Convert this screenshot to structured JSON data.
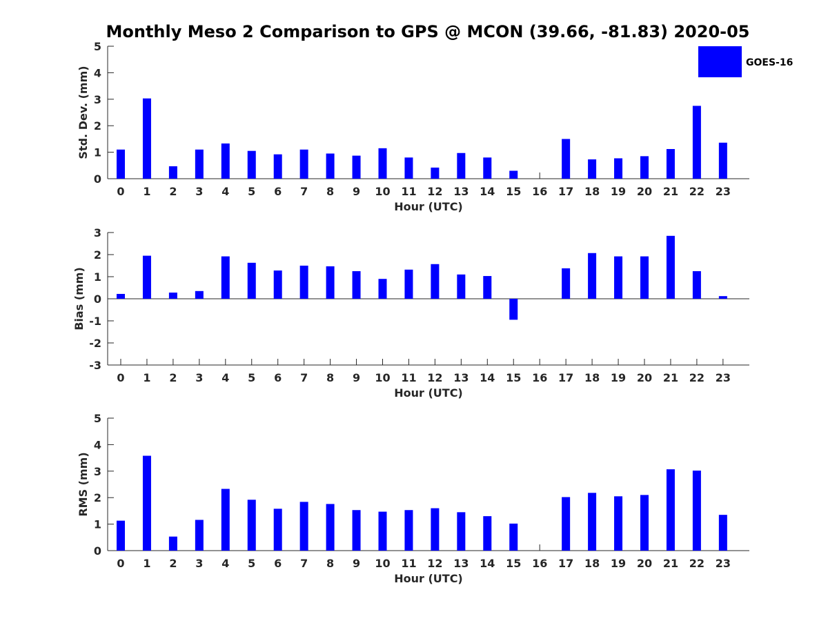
{
  "title": "Monthly Meso 2 Comparison to GPS @ MCON (39.66, -81.83) 2020-05",
  "legend": {
    "label": "GOES-16",
    "color": "#0000ff"
  },
  "chart_data": [
    {
      "type": "bar",
      "xlabel": "Hour (UTC)",
      "ylabel": "Std. Dev. (mm)",
      "ylim": [
        0,
        5
      ],
      "yticks": [
        "0",
        "1",
        "2",
        "3",
        "4",
        "5"
      ],
      "categories": [
        "0",
        "1",
        "2",
        "3",
        "4",
        "5",
        "6",
        "7",
        "8",
        "9",
        "10",
        "11",
        "12",
        "13",
        "14",
        "15",
        "16",
        "17",
        "18",
        "19",
        "20",
        "21",
        "22",
        "23"
      ],
      "series": [
        {
          "name": "GOES-16",
          "values": [
            1.1,
            3.03,
            0.47,
            1.1,
            1.33,
            1.05,
            0.92,
            1.1,
            0.95,
            0.87,
            1.15,
            0.8,
            0.42,
            0.97,
            0.8,
            0.3,
            0,
            1.5,
            0.73,
            0.77,
            0.85,
            1.12,
            2.75,
            1.36
          ]
        }
      ]
    },
    {
      "type": "bar",
      "xlabel": "Hour (UTC)",
      "ylabel": "Bias (mm)",
      "ylim": [
        -3,
        3
      ],
      "yticks": [
        "-3",
        "-2",
        "-1",
        "0",
        "1",
        "2",
        "3"
      ],
      "categories": [
        "0",
        "1",
        "2",
        "3",
        "4",
        "5",
        "6",
        "7",
        "8",
        "9",
        "10",
        "11",
        "12",
        "13",
        "14",
        "15",
        "16",
        "17",
        "18",
        "19",
        "20",
        "21",
        "22",
        "23"
      ],
      "series": [
        {
          "name": "GOES-16",
          "values": [
            0.22,
            1.95,
            0.28,
            0.35,
            1.92,
            1.63,
            1.28,
            1.5,
            1.47,
            1.25,
            0.9,
            1.32,
            1.57,
            1.1,
            1.03,
            -0.95,
            0,
            1.38,
            2.07,
            1.92,
            1.92,
            2.85,
            1.25,
            0.12
          ]
        }
      ]
    },
    {
      "type": "bar",
      "xlabel": "Hour (UTC)",
      "ylabel": "RMS (mm)",
      "ylim": [
        0,
        5
      ],
      "yticks": [
        "0",
        "1",
        "2",
        "3",
        "4",
        "5"
      ],
      "categories": [
        "0",
        "1",
        "2",
        "3",
        "4",
        "5",
        "6",
        "7",
        "8",
        "9",
        "10",
        "11",
        "12",
        "13",
        "14",
        "15",
        "16",
        "17",
        "18",
        "19",
        "20",
        "21",
        "22",
        "23"
      ],
      "series": [
        {
          "name": "GOES-16",
          "values": [
            1.13,
            3.58,
            0.53,
            1.16,
            2.33,
            1.92,
            1.58,
            1.84,
            1.76,
            1.53,
            1.47,
            1.53,
            1.6,
            1.45,
            1.3,
            1.02,
            0,
            2.02,
            2.18,
            2.05,
            2.1,
            3.07,
            3.02,
            1.35
          ]
        }
      ]
    }
  ]
}
